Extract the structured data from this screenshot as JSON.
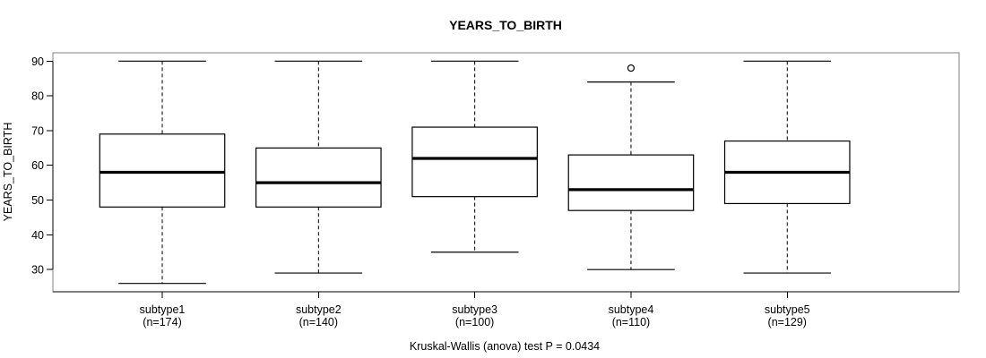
{
  "title": "YEARS_TO_BIRTH",
  "footnote": "Kruskal-Wallis (anova) test P = 0.0434",
  "colors": {
    "frame": "#808080",
    "axis": "#000000",
    "box_stroke": "#000000",
    "median": "#000000",
    "background": "#ffffff"
  },
  "chart_data": {
    "type": "boxplot",
    "title": "YEARS_TO_BIRTH",
    "xlabel": "",
    "ylabel": "YEARS_TO_BIRTH",
    "ylim": [
      23.6,
      92.4
    ],
    "yticks": [
      30,
      40,
      50,
      60,
      70,
      80,
      90
    ],
    "grid": "off",
    "annotation": "Kruskal-Wallis (anova) test P = 0.0434",
    "groups": [
      {
        "label": "subtype1",
        "sublabel": "(n=174)",
        "n": 174,
        "whisker_low": 26,
        "q1": 48,
        "median": 58,
        "q3": 69,
        "whisker_high": 90,
        "outliers": []
      },
      {
        "label": "subtype2",
        "sublabel": "(n=140)",
        "n": 140,
        "whisker_low": 29,
        "q1": 48,
        "median": 55,
        "q3": 65,
        "whisker_high": 90,
        "outliers": []
      },
      {
        "label": "subtype3",
        "sublabel": "(n=100)",
        "n": 100,
        "whisker_low": 35,
        "q1": 51,
        "median": 62,
        "q3": 71,
        "whisker_high": 90,
        "outliers": []
      },
      {
        "label": "subtype4",
        "sublabel": "(n=110)",
        "n": 110,
        "whisker_low": 30,
        "q1": 47,
        "median": 53,
        "q3": 63,
        "whisker_high": 84,
        "outliers": [
          88
        ]
      },
      {
        "label": "subtype5",
        "sublabel": "(n=129)",
        "n": 129,
        "whisker_low": 29,
        "q1": 49,
        "median": 58,
        "q3": 67,
        "whisker_high": 90,
        "outliers": []
      }
    ]
  }
}
